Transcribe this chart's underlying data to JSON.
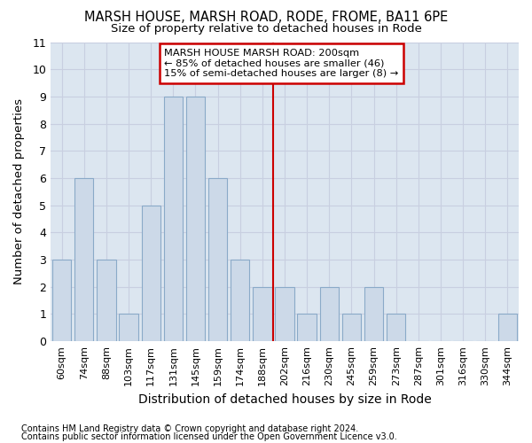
{
  "title1": "MARSH HOUSE, MARSH ROAD, RODE, FROME, BA11 6PE",
  "title2": "Size of property relative to detached houses in Rode",
  "xlabel": "Distribution of detached houses by size in Rode",
  "ylabel": "Number of detached properties",
  "categories": [
    "60sqm",
    "74sqm",
    "88sqm",
    "103sqm",
    "117sqm",
    "131sqm",
    "145sqm",
    "159sqm",
    "174sqm",
    "188sqm",
    "202sqm",
    "216sqm",
    "230sqm",
    "245sqm",
    "259sqm",
    "273sqm",
    "287sqm",
    "301sqm",
    "316sqm",
    "330sqm",
    "344sqm"
  ],
  "values": [
    3,
    6,
    3,
    1,
    5,
    9,
    9,
    6,
    3,
    2,
    2,
    1,
    2,
    1,
    2,
    1,
    0,
    0,
    0,
    0,
    1
  ],
  "bar_color": "#ccd9e8",
  "bar_edge_color": "#8aaac8",
  "marker_label": "MARSH HOUSE MARSH ROAD: 200sqm",
  "marker_label2": "← 85% of detached houses are smaller (46)",
  "marker_label3": "15% of semi-detached houses are larger (8) →",
  "marker_color": "#cc0000",
  "ylim": [
    0,
    11
  ],
  "yticks": [
    0,
    1,
    2,
    3,
    4,
    5,
    6,
    7,
    8,
    9,
    10,
    11
  ],
  "grid_color": "#c8cfe0",
  "bg_color": "#dce6f0",
  "title1_fontsize": 10.5,
  "title2_fontsize": 9.5,
  "footnote1": "Contains HM Land Registry data © Crown copyright and database right 2024.",
  "footnote2": "Contains public sector information licensed under the Open Government Licence v3.0."
}
